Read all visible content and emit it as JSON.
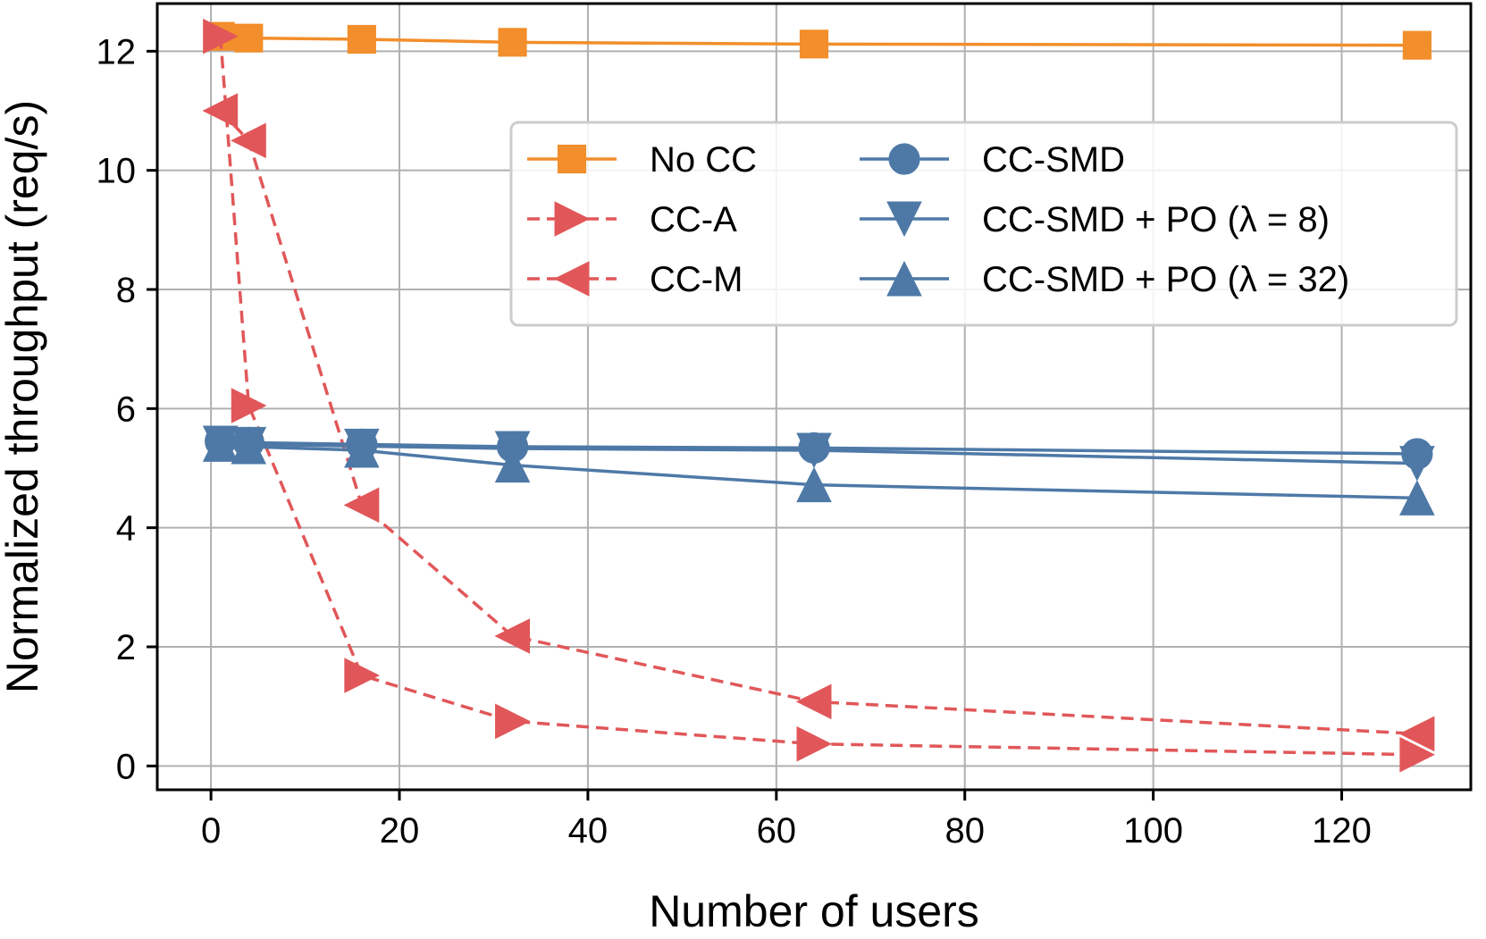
{
  "chart_data": {
    "type": "line",
    "title": "",
    "xlabel": "Number of users",
    "ylabel": "Normalized throughput (req/s)",
    "xlim": [
      -5.7,
      133.7
    ],
    "ylim": [
      -0.4,
      12.8
    ],
    "xticks": [
      0,
      20,
      40,
      60,
      80,
      100,
      120
    ],
    "yticks": [
      0,
      2,
      4,
      6,
      8,
      10,
      12
    ],
    "grid": true,
    "legend_position": "upper-right",
    "series": [
      {
        "name": "No CC",
        "color": "#F28E2B",
        "line_style": "solid",
        "marker": "square",
        "x": [
          1,
          4,
          16,
          32,
          64,
          128
        ],
        "y": [
          12.25,
          12.22,
          12.2,
          12.15,
          12.12,
          12.1
        ]
      },
      {
        "name": "CC-A",
        "color": "#E15759",
        "line_style": "dashed",
        "marker": "triangle-right",
        "x": [
          1,
          4,
          16,
          32,
          64,
          128
        ],
        "y": [
          12.25,
          6.05,
          1.52,
          0.75,
          0.37,
          0.19
        ]
      },
      {
        "name": "CC-M",
        "color": "#E15759",
        "line_style": "dashed",
        "marker": "triangle-left",
        "x": [
          1,
          4,
          16,
          32,
          64,
          128
        ],
        "y": [
          11.0,
          10.5,
          4.38,
          2.18,
          1.08,
          0.54
        ]
      },
      {
        "name": "CC-SMD",
        "color": "#4E79A7",
        "line_style": "solid",
        "marker": "circle",
        "x": [
          1,
          4,
          16,
          32,
          64,
          128
        ],
        "y": [
          5.45,
          5.43,
          5.4,
          5.36,
          5.34,
          5.24
        ]
      },
      {
        "name": "CC-SMD + PO (λ = 8)",
        "color": "#4E79A7",
        "line_style": "solid",
        "marker": "triangle-down",
        "x": [
          1,
          4,
          16,
          32,
          64,
          128
        ],
        "y": [
          5.42,
          5.4,
          5.37,
          5.33,
          5.3,
          5.08
        ]
      },
      {
        "name": "CC-SMD + PO (λ = 32)",
        "color": "#4E79A7",
        "line_style": "solid",
        "marker": "triangle-up",
        "x": [
          1,
          4,
          16,
          32,
          64,
          128
        ],
        "y": [
          5.4,
          5.36,
          5.3,
          5.05,
          4.72,
          4.5
        ]
      }
    ]
  }
}
